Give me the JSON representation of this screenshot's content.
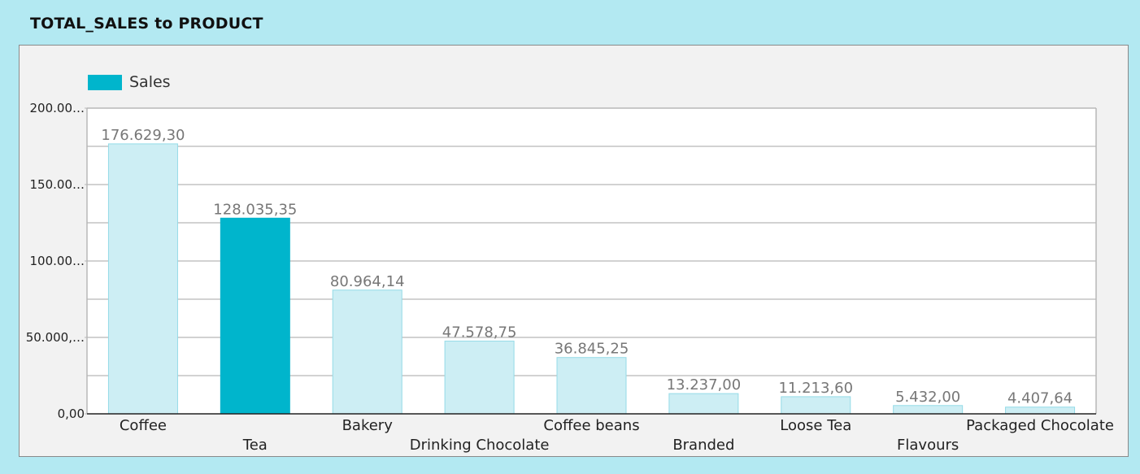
{
  "title": "TOTAL_SALES to PRODUCT",
  "colors": {
    "accent": "#00b5cc",
    "dimmed": "#cdeef4",
    "dimmed_border": "#94dbe7",
    "grid": "#b8b8b8",
    "panel_bg": "#f2f2f2",
    "page_bg": "#b3e9f2"
  },
  "legend": {
    "label": "Sales"
  },
  "chart_data": {
    "type": "bar",
    "title": "TOTAL_SALES to PRODUCT",
    "xlabel": "",
    "ylabel": "",
    "ylim": [
      0,
      200000
    ],
    "y_ticks": [
      {
        "value": 0,
        "label": "0,00"
      },
      {
        "value": 50000,
        "label": "50.000,…"
      },
      {
        "value": 100000,
        "label": "100.00…"
      },
      {
        "value": 150000,
        "label": "150.00…"
      },
      {
        "value": 200000,
        "label": "200.00…"
      }
    ],
    "grid": true,
    "legend_position": "top-left",
    "highlighted_category": "Tea",
    "categories": [
      "Coffee",
      "Tea",
      "Bakery",
      "Drinking Chocolate",
      "Coffee beans",
      "Branded",
      "Loose Tea",
      "Flavours",
      "Packaged Chocolate"
    ],
    "series": [
      {
        "name": "Sales",
        "values": [
          176629.3,
          128035.35,
          80964.14,
          47578.75,
          36845.25,
          13237.0,
          11213.6,
          5432.0,
          4407.64
        ],
        "labels": [
          "176.629,30",
          "128.035,35",
          "80.964,14",
          "47.578,75",
          "36.845,25",
          "13.237,00",
          "11.213,60",
          "5.432,00",
          "4.407,64"
        ]
      }
    ]
  }
}
